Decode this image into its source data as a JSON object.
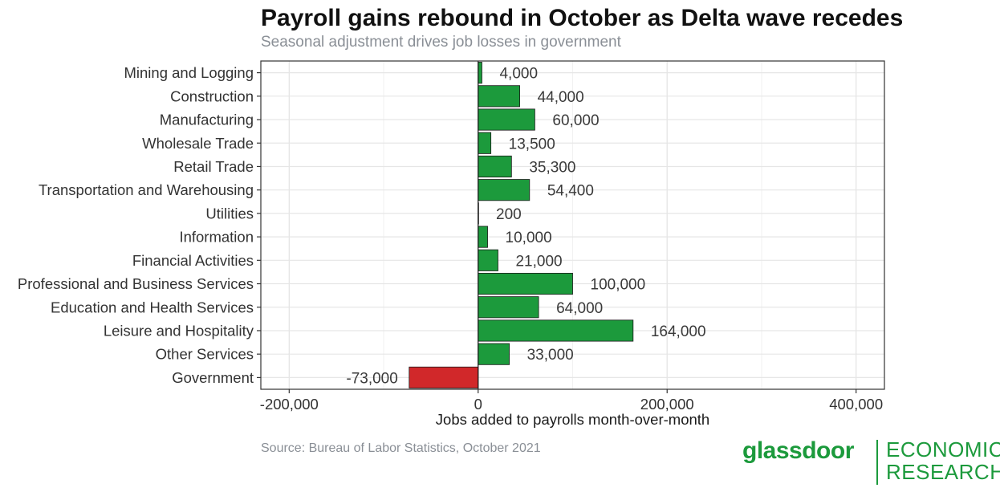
{
  "header": {
    "title": "Payroll gains rebound in October as Delta wave recedes",
    "subtitle": "Seasonal adjustment drives job losses in government"
  },
  "footer": {
    "source": "Source: Bureau of Labor Statistics, October 2021",
    "brand_name": "glassdoor",
    "brand_unit_line1": "ECONOMIC",
    "brand_unit_line2": "RESEARCH"
  },
  "colors": {
    "positive": "#1c9a3c",
    "negative": "#d1282a",
    "brand": "#1c9a3c"
  },
  "chart_data": {
    "type": "bar",
    "orientation": "horizontal",
    "title": "Payroll gains rebound in October as Delta wave recedes",
    "subtitle": "Seasonal adjustment drives job losses in government",
    "xlabel": "Jobs added to payrolls month-over-month",
    "ylabel": "",
    "xlim": [
      -230000,
      430000
    ],
    "xticks": [
      -200000,
      0,
      200000,
      400000
    ],
    "xtick_labels": [
      "-200,000",
      "0",
      "200,000",
      "400,000"
    ],
    "grid": true,
    "categories": [
      "Mining and Logging",
      "Construction",
      "Manufacturing",
      "Wholesale Trade",
      "Retail Trade",
      "Transportation and Warehousing",
      "Utilities",
      "Information",
      "Financial Activities",
      "Professional and Business Services",
      "Education and Health Services",
      "Leisure and Hospitality",
      "Other Services",
      "Government"
    ],
    "values": [
      4000,
      44000,
      60000,
      13500,
      35300,
      54400,
      200,
      10000,
      21000,
      100000,
      64000,
      164000,
      33000,
      -73000
    ],
    "value_labels": [
      "4,000",
      "44,000",
      "60,000",
      "13,500",
      "35,300",
      "54,400",
      "200",
      "10,000",
      "21,000",
      "100,000",
      "64,000",
      "164,000",
      "33,000",
      "-73,000"
    ]
  }
}
